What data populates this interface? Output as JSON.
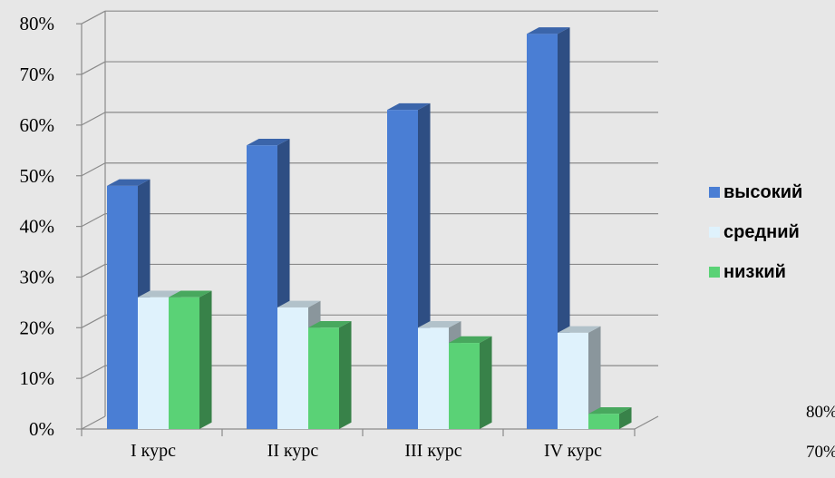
{
  "chart_data": {
    "type": "bar",
    "categories": [
      "I курс",
      "II курс",
      "III курс",
      "IV курс"
    ],
    "series": [
      {
        "name": "высокий",
        "values": [
          48,
          56,
          63,
          78
        ],
        "color": "#4a7ed4"
      },
      {
        "name": "средний",
        "values": [
          26,
          24,
          20,
          19
        ],
        "color": "#dff2fc"
      },
      {
        "name": "низкий",
        "values": [
          26,
          20,
          17,
          3
        ],
        "color": "#5ad276"
      }
    ],
    "y_ticks": [
      "0%",
      "10%",
      "20%",
      "30%",
      "40%",
      "50%",
      "60%",
      "70%",
      "80%"
    ],
    "ylim": [
      0,
      80
    ],
    "grid": true,
    "legend_position": "right",
    "title": "",
    "xlabel": "",
    "ylabel": "",
    "background_color": "#e7e7e7",
    "stray_labels": [
      "80%",
      "70%"
    ]
  }
}
